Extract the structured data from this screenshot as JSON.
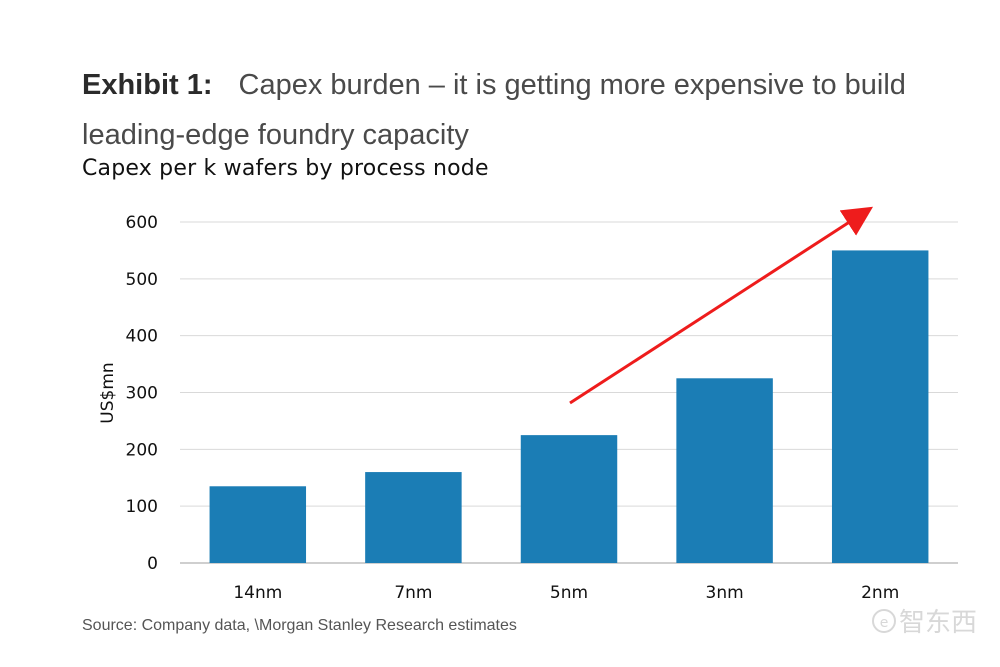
{
  "header": {
    "exhibit_label": "Exhibit 1:",
    "exhibit_title": "Capex burden – it is getting more expensive to build leading-edge foundry capacity"
  },
  "chart_data": {
    "type": "bar",
    "title": "Capex per k wafers by process node",
    "xlabel": "",
    "ylabel": "US$mn",
    "categories": [
      "14nm",
      "7nm",
      "5nm",
      "3nm",
      "2nm"
    ],
    "values": [
      135,
      160,
      225,
      325,
      550
    ],
    "ylim": [
      0,
      600
    ],
    "yticks": [
      0,
      100,
      200,
      300,
      400,
      500,
      600
    ],
    "grid": true,
    "legend": "none",
    "annotations": [
      {
        "type": "trend-arrow",
        "from_category": "5nm",
        "to_category": "2nm",
        "color": "#ee1c1c"
      }
    ]
  },
  "colors": {
    "bar": "#1b7db5",
    "grid": "#d9d9d9",
    "arrow": "#ee1c1c",
    "watermark": "#d8d8d8"
  },
  "footer": {
    "source": "Source: Company data, \\Morgan Stanley Research estimates"
  },
  "watermark": {
    "text": "智东西"
  }
}
